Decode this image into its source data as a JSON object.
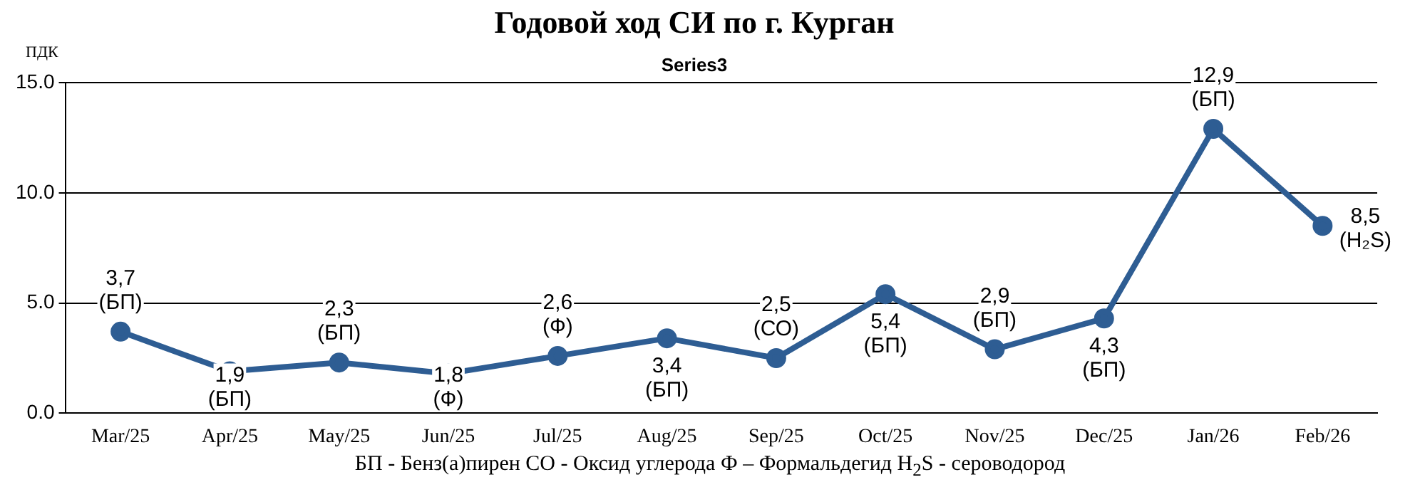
{
  "chart_data": {
    "type": "line",
    "title": "Годовой ход СИ по г. Курган",
    "subtitle": "Series3",
    "ylabel": "ПДК",
    "categories": [
      "Mar/25",
      "Apr/25",
      "May/25",
      "Jun/25",
      "Jul/25",
      "Aug/25",
      "Sep/25",
      "Oct/25",
      "Nov/25",
      "Dec/25",
      "Jan/26",
      "Feb/26"
    ],
    "series": [
      {
        "color": "#2e5d93",
        "values": [
          3.7,
          1.9,
          2.3,
          1.8,
          2.6,
          3.4,
          2.5,
          5.4,
          2.9,
          4.3,
          12.9,
          8.5
        ],
        "value_labels": [
          "3,7\n(БП)",
          "1,9\n(БП)",
          "2,3\n(БП)",
          "1,8\n(Ф)",
          "2,6\n(Ф)",
          "3,4\n(БП)",
          "2,5\n(СО)",
          "5,4\n(БП)",
          "2,9\n(БП)",
          "4,3\n(БП)",
          "12,9\n(БП)",
          "8,5\n(H₂S)"
        ]
      }
    ],
    "ylim": [
      0,
      15
    ],
    "yticks": [
      {
        "value": 0,
        "label": "0.0"
      },
      {
        "value": 5,
        "label": "5.0"
      },
      {
        "value": 10,
        "label": "10.0"
      },
      {
        "value": 15,
        "label": "15.0"
      }
    ],
    "grid": "y",
    "marker": "circle",
    "line_style": "solid",
    "legend": false,
    "annotations": [
      "БП - Бенз(а)пирен  СО - Оксид углерода  Ф – Формальдегид H$_{2}$S - сероводород"
    ]
  }
}
